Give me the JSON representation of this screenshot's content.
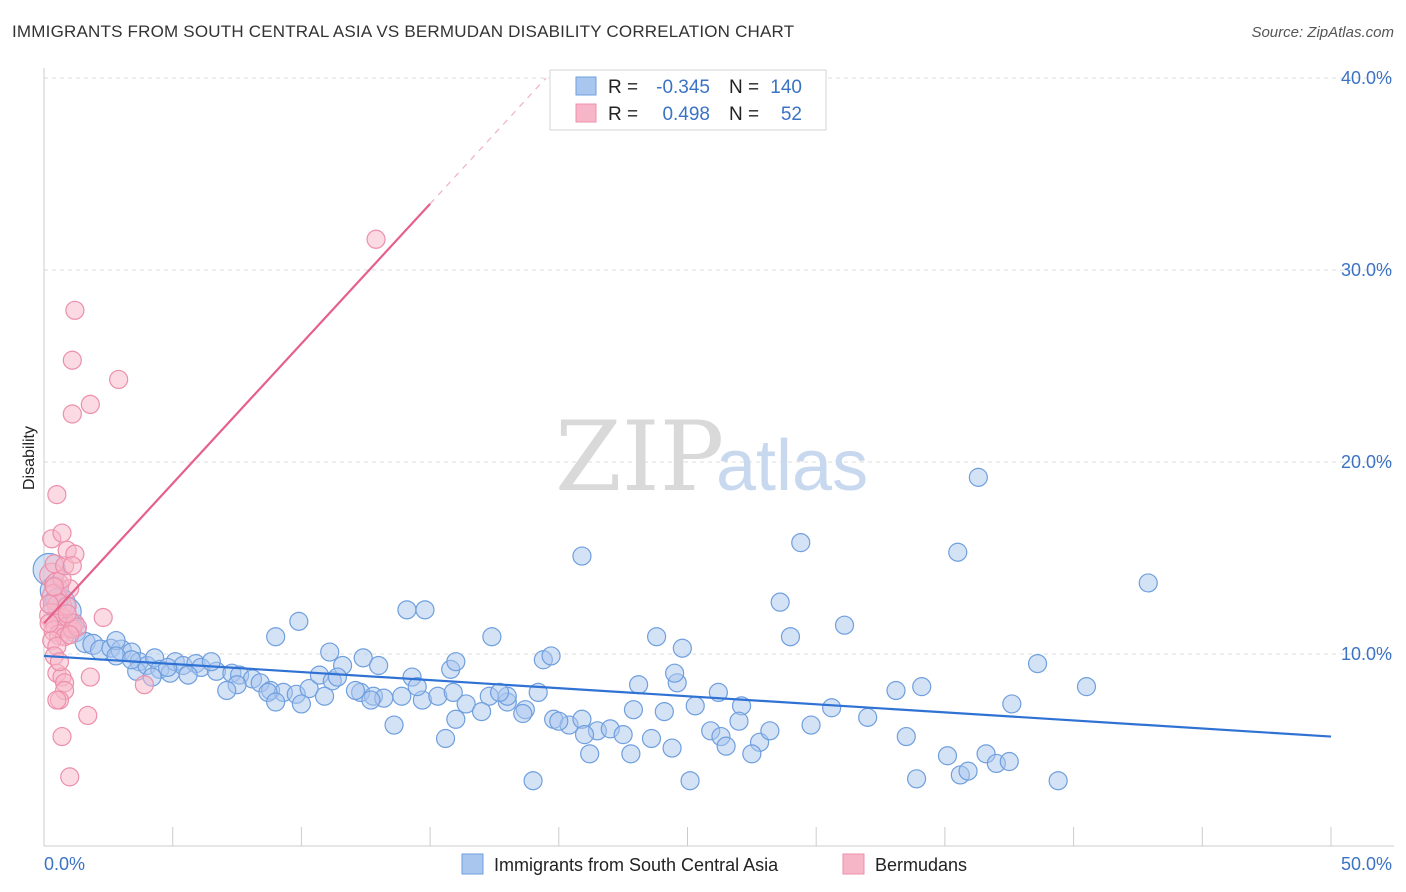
{
  "header": {
    "title": "IMMIGRANTS FROM SOUTH CENTRAL ASIA VS BERMUDAN DISABILITY CORRELATION CHART",
    "source": "Source: ZipAtlas.com"
  },
  "watermark": {
    "zip": "ZIP",
    "atlas": "atlas"
  },
  "colors": {
    "blue_fill": "#a9c6ee",
    "blue_stroke": "#6f9fde",
    "blue_line": "#2f72d3",
    "pink_fill": "#f7b6c8",
    "pink_stroke": "#ec8fab",
    "pink_line": "#e5608a",
    "tick_label": "#3b73c4",
    "grid": "#dddddd"
  },
  "stats": [
    {
      "r_label": "R =",
      "r_value": "-0.345",
      "n_label": "N =",
      "n_value": "140",
      "series": "blue"
    },
    {
      "r_label": "R =",
      "r_value": "0.498",
      "n_label": "N =",
      "n_value": "52",
      "series": "pink"
    }
  ],
  "chart_data": {
    "type": "scatter",
    "title": "IMMIGRANTS FROM SOUTH CENTRAL ASIA VS BERMUDAN DISABILITY CORRELATION CHART",
    "xlabel": "",
    "ylabel": "Disability",
    "xlim": [
      0,
      50
    ],
    "ylim": [
      0,
      40
    ],
    "x_ticks": [
      {
        "value": 0,
        "label": "0.0%"
      },
      {
        "value": 50,
        "label": "50.0%"
      }
    ],
    "y_ticks": [
      {
        "value": 10,
        "label": "10.0%"
      },
      {
        "value": 20,
        "label": "20.0%"
      },
      {
        "value": 30,
        "label": "30.0%"
      },
      {
        "value": 40,
        "label": "40.0%"
      }
    ],
    "grid": true,
    "legend_position": "bottom-center",
    "series": [
      {
        "name": "Immigrants from South Central Asia",
        "color": "blue",
        "trendline": {
          "x": [
            0,
            50
          ],
          "y": [
            9.9,
            5.7
          ],
          "solid_to": 50
        },
        "points": [
          [
            0.2,
            14.4,
            16
          ],
          [
            0.4,
            13.3,
            14
          ],
          [
            0.6,
            12.6,
            16
          ],
          [
            0.9,
            12.2,
            14
          ],
          [
            0.5,
            12.8,
            11
          ],
          [
            1.0,
            11.5,
            12
          ],
          [
            1.2,
            11.2,
            11
          ],
          [
            1.6,
            10.6,
            10
          ],
          [
            1.9,
            10.5,
            10
          ],
          [
            2.2,
            10.2,
            10
          ],
          [
            2.6,
            10.3,
            9
          ],
          [
            3.0,
            10.2,
            10
          ],
          [
            3.4,
            10.1,
            9
          ],
          [
            2.8,
            10.7,
            9
          ],
          [
            3.7,
            9.6,
            9
          ],
          [
            2.8,
            9.9,
            9
          ],
          [
            3.6,
            9.1,
            9
          ],
          [
            4.0,
            9.4,
            9
          ],
          [
            4.3,
            9.8,
            9
          ],
          [
            4.5,
            9.2,
            9
          ],
          [
            4.9,
            9.0,
            9
          ],
          [
            5.1,
            9.6,
            9
          ],
          [
            5.4,
            9.4,
            9
          ],
          [
            5.9,
            9.5,
            9
          ],
          [
            6.1,
            9.3,
            9
          ],
          [
            6.7,
            9.1,
            9
          ],
          [
            7.3,
            9.0,
            9
          ],
          [
            7.6,
            8.9,
            9
          ],
          [
            8.1,
            8.7,
            9
          ],
          [
            7.5,
            8.4,
            9
          ],
          [
            8.4,
            8.5,
            9
          ],
          [
            8.8,
            8.1,
            9
          ],
          [
            9.3,
            8.0,
            9
          ],
          [
            9.8,
            7.9,
            9
          ],
          [
            10.3,
            8.2,
            9
          ],
          [
            8.7,
            8.0,
            9
          ],
          [
            9.0,
            7.5,
            9
          ],
          [
            10.0,
            7.4,
            9
          ],
          [
            10.7,
            8.9,
            9
          ],
          [
            11.2,
            8.6,
            9
          ],
          [
            11.6,
            9.4,
            9
          ],
          [
            12.3,
            8.0,
            9
          ],
          [
            12.8,
            7.8,
            9
          ],
          [
            13.2,
            7.7,
            9
          ],
          [
            13.9,
            7.8,
            9
          ],
          [
            14.3,
            8.8,
            9
          ],
          [
            14.7,
            7.6,
            9
          ],
          [
            15.3,
            7.8,
            9
          ],
          [
            15.9,
            8.0,
            9
          ],
          [
            16.4,
            7.4,
            9
          ],
          [
            17.3,
            7.8,
            9
          ],
          [
            18.0,
            7.5,
            9
          ],
          [
            18.7,
            7.1,
            9
          ],
          [
            19.2,
            8.0,
            9
          ],
          [
            19.8,
            6.6,
            9
          ],
          [
            20.4,
            6.3,
            9
          ],
          [
            20.9,
            6.6,
            9
          ],
          [
            21.5,
            6.0,
            9
          ],
          [
            22.0,
            6.1,
            9
          ],
          [
            22.5,
            5.8,
            9
          ],
          [
            22.9,
            7.1,
            9
          ],
          [
            23.6,
            5.6,
            9
          ],
          [
            24.1,
            7.0,
            9
          ],
          [
            24.6,
            8.5,
            9
          ],
          [
            25.3,
            7.3,
            9
          ],
          [
            25.9,
            6.0,
            9
          ],
          [
            26.3,
            5.7,
            9
          ],
          [
            27.1,
            7.3,
            9
          ],
          [
            27.8,
            5.4,
            9
          ],
          [
            28.2,
            6.0,
            9
          ],
          [
            26.5,
            5.2,
            9
          ],
          [
            21.0,
            5.8,
            9
          ],
          [
            13.6,
            6.3,
            9
          ],
          [
            12.1,
            8.1,
            9
          ],
          [
            14.5,
            8.3,
            9
          ],
          [
            15.6,
            5.6,
            9
          ],
          [
            16.0,
            6.6,
            9
          ],
          [
            17.0,
            7.0,
            9
          ],
          [
            18.0,
            7.8,
            9
          ],
          [
            19.4,
            9.7,
            9
          ],
          [
            20.0,
            6.5,
            9
          ],
          [
            21.2,
            4.8,
            9
          ],
          [
            22.8,
            4.8,
            9
          ],
          [
            24.4,
            5.1,
            9
          ],
          [
            25.1,
            3.4,
            9
          ],
          [
            19.0,
            3.4,
            9
          ],
          [
            9.0,
            10.9,
            9
          ],
          [
            9.9,
            11.7,
            9
          ],
          [
            11.1,
            10.1,
            9
          ],
          [
            12.4,
            9.8,
            9
          ],
          [
            13.0,
            9.4,
            9
          ],
          [
            14.1,
            12.3,
            9
          ],
          [
            14.8,
            12.3,
            9
          ],
          [
            15.8,
            9.2,
            9
          ],
          [
            16.0,
            9.6,
            9
          ],
          [
            17.4,
            10.9,
            9
          ],
          [
            19.7,
            9.9,
            9
          ],
          [
            20.9,
            15.1,
            9
          ],
          [
            23.1,
            8.4,
            9
          ],
          [
            23.8,
            10.9,
            9
          ],
          [
            24.5,
            9.0,
            9
          ],
          [
            24.8,
            10.3,
            9
          ],
          [
            26.2,
            8.0,
            9
          ],
          [
            27.0,
            6.5,
            9
          ],
          [
            28.6,
            12.7,
            9
          ],
          [
            29.0,
            10.9,
            9
          ],
          [
            29.4,
            15.8,
            9
          ],
          [
            30.6,
            7.2,
            9
          ],
          [
            31.1,
            11.5,
            9
          ],
          [
            32.0,
            6.7,
            9
          ],
          [
            33.1,
            8.1,
            9
          ],
          [
            33.5,
            5.7,
            9
          ],
          [
            33.9,
            3.5,
            9
          ],
          [
            34.1,
            8.3,
            9
          ],
          [
            35.1,
            4.7,
            9
          ],
          [
            35.5,
            15.3,
            9
          ],
          [
            35.6,
            3.7,
            9
          ],
          [
            36.3,
            19.2,
            9
          ],
          [
            36.6,
            4.8,
            9
          ],
          [
            37.0,
            4.3,
            9
          ],
          [
            37.5,
            4.4,
            9
          ],
          [
            37.6,
            7.4,
            9
          ],
          [
            38.6,
            9.5,
            9
          ],
          [
            39.4,
            3.4,
            9
          ],
          [
            40.5,
            8.3,
            9
          ],
          [
            42.9,
            13.7,
            9
          ],
          [
            35.9,
            3.9,
            9
          ],
          [
            29.8,
            6.3,
            9
          ],
          [
            27.5,
            4.8,
            9
          ],
          [
            18.6,
            6.9,
            9
          ],
          [
            17.7,
            8.0,
            9
          ],
          [
            11.4,
            8.8,
            9
          ],
          [
            10.9,
            7.8,
            9
          ],
          [
            12.7,
            7.6,
            9
          ],
          [
            7.1,
            8.1,
            9
          ],
          [
            6.5,
            9.6,
            9
          ],
          [
            5.6,
            8.9,
            9
          ],
          [
            4.8,
            9.3,
            9
          ],
          [
            4.2,
            8.8,
            9
          ],
          [
            3.4,
            9.7,
            9
          ]
        ]
      },
      {
        "name": "Bermudans",
        "color": "pink",
        "trendline": {
          "x": [
            0,
            19.5
          ],
          "y": [
            11.6,
            40.0
          ],
          "solid_to": 15.0
        },
        "points": [
          [
            0.3,
            14.1,
            12
          ],
          [
            0.5,
            13.6,
            12
          ],
          [
            0.4,
            13.0,
            12
          ],
          [
            0.6,
            12.5,
            12
          ],
          [
            0.3,
            12.0,
            12
          ],
          [
            0.7,
            11.8,
            11
          ],
          [
            0.5,
            11.5,
            11
          ],
          [
            0.9,
            11.4,
            10
          ],
          [
            0.4,
            11.2,
            10
          ],
          [
            0.6,
            11.0,
            10
          ],
          [
            0.8,
            10.9,
            9
          ],
          [
            0.3,
            10.7,
            9
          ],
          [
            1.1,
            11.3,
            9
          ],
          [
            1.2,
            11.6,
            9
          ],
          [
            0.5,
            10.4,
            9
          ],
          [
            0.2,
            11.6,
            9
          ],
          [
            1.3,
            11.4,
            9
          ],
          [
            0.9,
            12.5,
            9
          ],
          [
            1.0,
            13.4,
            9
          ],
          [
            0.7,
            13.9,
            9
          ],
          [
            0.4,
            14.7,
            9
          ],
          [
            0.8,
            14.6,
            9
          ],
          [
            0.3,
            16.0,
            9
          ],
          [
            0.7,
            16.3,
            9
          ],
          [
            0.9,
            15.4,
            9
          ],
          [
            1.2,
            15.2,
            9
          ],
          [
            1.1,
            14.6,
            9
          ],
          [
            0.5,
            18.3,
            9
          ],
          [
            1.1,
            22.5,
            9
          ],
          [
            1.8,
            23.0,
            9
          ],
          [
            1.1,
            25.3,
            9
          ],
          [
            1.2,
            27.9,
            9
          ],
          [
            2.9,
            24.3,
            9
          ],
          [
            12.9,
            31.6,
            9
          ],
          [
            2.3,
            11.9,
            9
          ],
          [
            0.4,
            9.9,
            9
          ],
          [
            0.5,
            9.0,
            9
          ],
          [
            0.7,
            8.8,
            9
          ],
          [
            0.8,
            8.5,
            9
          ],
          [
            0.8,
            8.1,
            9
          ],
          [
            0.6,
            7.6,
            9
          ],
          [
            0.5,
            7.6,
            9
          ],
          [
            1.7,
            6.8,
            9
          ],
          [
            1.8,
            8.8,
            9
          ],
          [
            3.9,
            8.4,
            9
          ],
          [
            0.7,
            5.7,
            9
          ],
          [
            1.0,
            3.6,
            9
          ],
          [
            0.2,
            12.6,
            9
          ],
          [
            0.9,
            12.1,
            9
          ],
          [
            0.6,
            9.6,
            9
          ],
          [
            0.4,
            13.5,
            9
          ],
          [
            1.0,
            11.0,
            9
          ]
        ]
      }
    ]
  }
}
